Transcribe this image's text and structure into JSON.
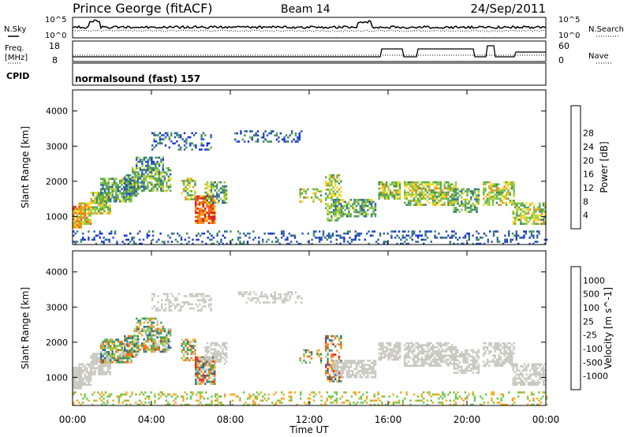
{
  "header": {
    "station": "Prince George (fitACF)",
    "beam": "Beam 14",
    "date": "24/Sep/2011"
  },
  "noise_panel": {
    "left_label": "N.Sky",
    "right_label": "N.Search",
    "left_ticks": [
      "10^5",
      "10^0"
    ],
    "right_ticks": [
      "10^5",
      "10^0"
    ]
  },
  "freq_panel": {
    "left_label_1": "Freq.",
    "left_label_2": "[MHz]",
    "left_ticks": [
      "18",
      "8"
    ],
    "right_label": "Nave",
    "right_ticks": [
      "60",
      "0"
    ]
  },
  "cpid_panel": {
    "label": "CPID",
    "text": "normalsound (fast) 157"
  },
  "colors": {
    "power_scale": [
      "#1530d8",
      "#2a58b0",
      "#3a8860",
      "#58aa48",
      "#8cc840",
      "#f0d820",
      "#f09010",
      "#f05808",
      "#e01010"
    ],
    "velocity_scale": [
      "#1a30b8",
      "#2a6a8a",
      "#3a9a5a",
      "#6ac848",
      "#c8c8c0",
      "#c8c8c0",
      "#f0a820",
      "#f07010",
      "#e82010"
    ]
  },
  "chart_data": [
    {
      "type": "heatmap",
      "name": "power",
      "ylabel": "Slant Range [km]",
      "yticks": [
        "1000",
        "2000",
        "3000",
        "4000"
      ],
      "ylim": [
        200,
        4600
      ],
      "colorbar_label": "Power [dB]",
      "colorbar_ticks": [
        "4",
        "8",
        "12",
        "16",
        "20",
        "24",
        "28"
      ],
      "colorbar_range": [
        0,
        32
      ]
    },
    {
      "type": "heatmap",
      "name": "velocity",
      "ylabel": "Slant Range [km]",
      "yticks": [
        "1000",
        "2000",
        "3000",
        "4000"
      ],
      "ylim": [
        200,
        4600
      ],
      "colorbar_label": "Velocity [m s^-1]",
      "colorbar_ticks": [
        "1000",
        "500",
        "100",
        "25",
        "-25",
        "-100",
        "-500",
        "-1000"
      ]
    }
  ],
  "time_axis": {
    "label": "Time UT",
    "ticks": [
      "00:00",
      "04:00",
      "08:00",
      "12:00",
      "16:00",
      "20:00",
      "00:00"
    ]
  }
}
